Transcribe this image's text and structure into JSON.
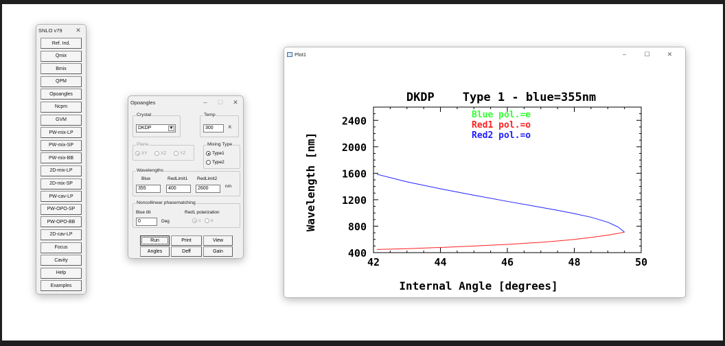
{
  "snlo": {
    "title": "SNLO v79",
    "buttons": [
      "Ref. Ind.",
      "Qmix",
      "Bmix",
      "QPM",
      "Opoangles",
      "Ncpm",
      "GVM",
      "PW-mix-LP",
      "PW-mix-SP",
      "PW-mix-BB",
      "2D-mix-LP",
      "2D-mix-SP",
      "PW-cav-LP",
      "PW-OPO-SP",
      "PW-OPO-BB",
      "2D-cav-LP",
      "Focus",
      "Cavity",
      "Help",
      "Examples"
    ]
  },
  "opoangles": {
    "title": "Opoangles",
    "crystal_label": "Crystal",
    "crystal_value": "DKDP",
    "temp_label": "Temp",
    "temp_value": "300",
    "temp_unit": "K",
    "plane_label": "Plane",
    "plane_options": [
      "XY",
      "XZ",
      "YZ"
    ],
    "mixing_label": "Mixing Type",
    "mixing_options": [
      "Type1",
      "Type2"
    ],
    "wavelengths_label": "Wavelengths",
    "blue_label": "Blue",
    "redlimit1_label": "RedLimit1",
    "redlimit2_label": "RedLimit2",
    "blue_value": "355",
    "redlimit1_value": "400",
    "redlimit2_value": "2600",
    "nm_unit": "nm",
    "ncpm_label": "Noncollinear phasematching",
    "bluetilt_label": "Blue tilt",
    "bluetilt_value": "0",
    "deg_unit": "Deg",
    "red1pol_label": "Red1 polarization",
    "red1pol_options": [
      "o",
      "e"
    ],
    "buttons": {
      "run": "Run",
      "print": "Print",
      "view": "View",
      "angles": "Angles",
      "deff": "Deff",
      "gain": "Gain"
    }
  },
  "plot": {
    "title": "Plot1"
  },
  "chart_data": {
    "type": "line",
    "title": "DKDP    Type 1 - blue=355nm",
    "xlabel": "Internal Angle [degrees]",
    "ylabel": "Wavelength [nm]",
    "xlim": [
      42,
      50
    ],
    "ylim": [
      400,
      2600
    ],
    "xticks": [
      42,
      44,
      46,
      48,
      50
    ],
    "yticks": [
      400,
      800,
      1200,
      1600,
      2000,
      2400
    ],
    "legend_position": "top-center",
    "series": [
      {
        "name": "Blue pol.=e",
        "color": "#33ff33",
        "x": [],
        "y": []
      },
      {
        "name": "Red1 pol.=o",
        "color": "#ff2020",
        "x": [
          42.1,
          43.0,
          44.0,
          45.0,
          46.0,
          47.0,
          47.5,
          48.0,
          48.5,
          49.0,
          49.3,
          49.5
        ],
        "y": [
          448,
          460,
          478,
          500,
          525,
          556,
          576,
          600,
          630,
          665,
          690,
          710
        ]
      },
      {
        "name": "Red2 pol.=o",
        "color": "#2020ff",
        "x": [
          42.1,
          43.0,
          44.0,
          45.0,
          46.0,
          47.0,
          47.5,
          48.0,
          48.5,
          49.0,
          49.3,
          49.5
        ],
        "y": [
          1585,
          1470,
          1365,
          1268,
          1175,
          1085,
          1040,
          990,
          935,
          860,
          790,
          710
        ]
      }
    ]
  }
}
